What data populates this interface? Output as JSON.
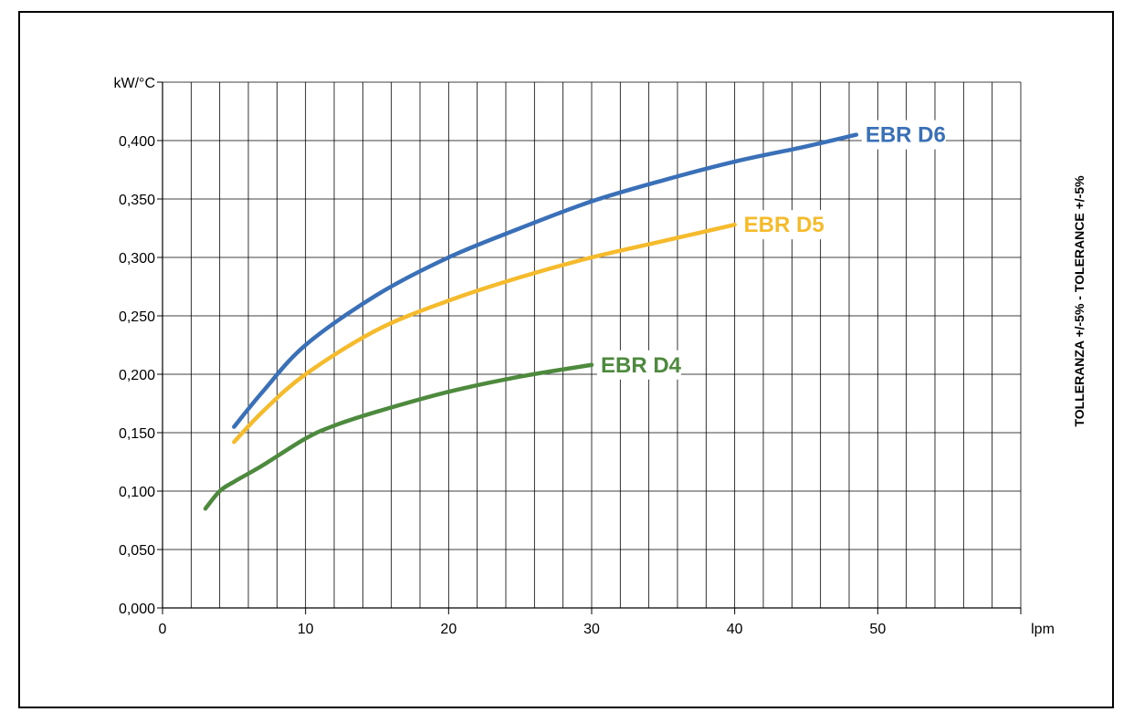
{
  "chart_data": {
    "type": "line",
    "title": "",
    "xlabel": "lpm",
    "ylabel": "kW/°C",
    "xlim": [
      0,
      60
    ],
    "ylim": [
      0,
      0.45
    ],
    "x_ticks": [
      0,
      10,
      20,
      30,
      40,
      50
    ],
    "x_tick_labels": [
      "0",
      "10",
      "20",
      "30",
      "40",
      "50"
    ],
    "y_ticks": [
      0,
      0.05,
      0.1,
      0.15,
      0.2,
      0.25,
      0.3,
      0.35,
      0.4
    ],
    "y_tick_labels": [
      "0,000",
      "0,050",
      "0,100",
      "0,150",
      "0,200",
      "0,250",
      "0,300",
      "0,350",
      "0,400"
    ],
    "grid": true,
    "x_minor_step": 2,
    "side_note": "TOLLERANZA +/-5% - TOLERANCE +/-5%",
    "series": [
      {
        "name": "EBR D6",
        "color": "#3a70b8",
        "points": [
          [
            5,
            0.155
          ],
          [
            7,
            0.185
          ],
          [
            10,
            0.225
          ],
          [
            15,
            0.268
          ],
          [
            20,
            0.3
          ],
          [
            25,
            0.325
          ],
          [
            30,
            0.348
          ],
          [
            35,
            0.366
          ],
          [
            40,
            0.382
          ],
          [
            45,
            0.395
          ],
          [
            48.5,
            0.405
          ]
        ]
      },
      {
        "name": "EBR D5",
        "color": "#f6bb2c",
        "points": [
          [
            5,
            0.142
          ],
          [
            7,
            0.168
          ],
          [
            10,
            0.2
          ],
          [
            15,
            0.238
          ],
          [
            20,
            0.263
          ],
          [
            25,
            0.283
          ],
          [
            30,
            0.3
          ],
          [
            35,
            0.314
          ],
          [
            40,
            0.328
          ]
        ]
      },
      {
        "name": "EBR D4",
        "color": "#4e8a3e",
        "points": [
          [
            3,
            0.085
          ],
          [
            4,
            0.1
          ],
          [
            5,
            0.108
          ],
          [
            7,
            0.122
          ],
          [
            10,
            0.145
          ],
          [
            12,
            0.156
          ],
          [
            15,
            0.168
          ],
          [
            20,
            0.185
          ],
          [
            25,
            0.198
          ],
          [
            30,
            0.208
          ]
        ]
      }
    ]
  }
}
